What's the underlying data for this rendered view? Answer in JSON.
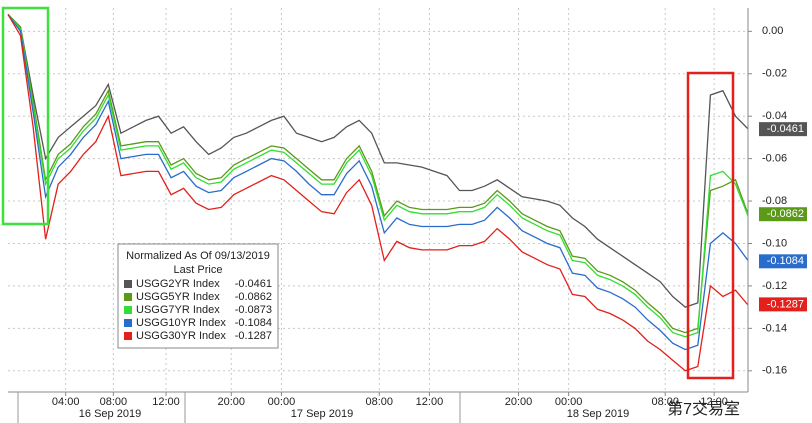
{
  "chart_data": {
    "type": "line",
    "legend_title": "Normalized As Of 09/13/2019",
    "legend_subtitle": "Last Price",
    "watermark": "第7交易室",
    "xlim": [
      0,
      59
    ],
    "xticks": [
      {
        "value": 4.6,
        "label": "04:00"
      },
      {
        "value": 8.4,
        "label": "08:00"
      },
      {
        "value": 12.6,
        "label": "12:00"
      },
      {
        "value": 17.8,
        "label": "20:00"
      },
      {
        "value": 21.8,
        "label": "00:00"
      },
      {
        "value": 29.6,
        "label": "08:00"
      },
      {
        "value": 33.6,
        "label": "12:00"
      },
      {
        "value": 40.7,
        "label": "20:00"
      },
      {
        "value": 44.7,
        "label": "00:00"
      },
      {
        "value": 52.4,
        "label": "08:00"
      },
      {
        "value": 56.3,
        "label": "12:00"
      }
    ],
    "days": [
      "16 Sep 2019",
      "17 Sep 2019",
      "18 Sep 2019"
    ],
    "ylim": [
      -0.17,
      0.011
    ],
    "yticks": [
      {
        "value": 0,
        "label": "0.00"
      },
      -0.02,
      -0.04,
      -0.06,
      -0.08,
      {
        "value": -0.1,
        "label": "-0.10"
      },
      -0.12,
      -0.14,
      -0.16
    ],
    "grid": true,
    "series": [
      {
        "name": "USGG2YR Index",
        "color": "#555555",
        "last": -0.0461,
        "axis_label": true,
        "values": [
          0.008,
          0.002,
          -0.03,
          -0.06,
          -0.05,
          -0.045,
          -0.04,
          -0.035,
          -0.025,
          -0.048,
          -0.045,
          -0.042,
          -0.04,
          -0.048,
          -0.045,
          -0.052,
          -0.058,
          -0.055,
          -0.05,
          -0.048,
          -0.045,
          -0.042,
          -0.04,
          -0.048,
          -0.05,
          -0.052,
          -0.05,
          -0.045,
          -0.042,
          -0.048,
          -0.062,
          -0.062,
          -0.063,
          -0.064,
          -0.066,
          -0.068,
          -0.075,
          -0.075,
          -0.073,
          -0.07,
          -0.074,
          -0.078,
          -0.079,
          -0.08,
          -0.082,
          -0.088,
          -0.092,
          -0.098,
          -0.102,
          -0.106,
          -0.11,
          -0.114,
          -0.118,
          -0.125,
          -0.13,
          -0.128,
          -0.03,
          -0.028,
          -0.04,
          -0.046
        ]
      },
      {
        "name": "USGG5YR Index",
        "color": "#5a9a18",
        "last": -0.0862,
        "axis_label": true,
        "values": [
          0.008,
          0.002,
          -0.033,
          -0.07,
          -0.058,
          -0.053,
          -0.045,
          -0.039,
          -0.028,
          -0.054,
          -0.053,
          -0.052,
          -0.052,
          -0.063,
          -0.06,
          -0.067,
          -0.07,
          -0.069,
          -0.063,
          -0.06,
          -0.057,
          -0.054,
          -0.055,
          -0.06,
          -0.065,
          -0.07,
          -0.07,
          -0.06,
          -0.054,
          -0.066,
          -0.087,
          -0.08,
          -0.083,
          -0.084,
          -0.084,
          -0.084,
          -0.083,
          -0.083,
          -0.081,
          -0.075,
          -0.08,
          -0.086,
          -0.089,
          -0.092,
          -0.094,
          -0.106,
          -0.107,
          -0.113,
          -0.115,
          -0.118,
          -0.122,
          -0.128,
          -0.133,
          -0.14,
          -0.142,
          -0.14,
          -0.075,
          -0.073,
          -0.07,
          -0.086
        ]
      },
      {
        "name": "USGG7YR Index",
        "color": "#33dd33",
        "last": -0.0873,
        "axis_label": false,
        "values": [
          0.008,
          0.001,
          -0.035,
          -0.072,
          -0.06,
          -0.055,
          -0.047,
          -0.041,
          -0.03,
          -0.056,
          -0.055,
          -0.054,
          -0.054,
          -0.065,
          -0.062,
          -0.069,
          -0.072,
          -0.071,
          -0.065,
          -0.062,
          -0.059,
          -0.056,
          -0.057,
          -0.062,
          -0.067,
          -0.072,
          -0.072,
          -0.062,
          -0.056,
          -0.068,
          -0.089,
          -0.082,
          -0.085,
          -0.086,
          -0.086,
          -0.086,
          -0.085,
          -0.085,
          -0.083,
          -0.077,
          -0.082,
          -0.088,
          -0.091,
          -0.094,
          -0.096,
          -0.108,
          -0.109,
          -0.115,
          -0.117,
          -0.12,
          -0.124,
          -0.13,
          -0.135,
          -0.142,
          -0.144,
          -0.142,
          -0.068,
          -0.066,
          -0.072,
          -0.087
        ]
      },
      {
        "name": "USGG10YR Index",
        "color": "#2a6ccc",
        "last": -0.1084,
        "axis_label": true,
        "values": [
          0.008,
          0.0,
          -0.038,
          -0.078,
          -0.064,
          -0.058,
          -0.05,
          -0.044,
          -0.033,
          -0.06,
          -0.059,
          -0.058,
          -0.058,
          -0.069,
          -0.066,
          -0.073,
          -0.076,
          -0.075,
          -0.069,
          -0.066,
          -0.063,
          -0.06,
          -0.061,
          -0.066,
          -0.072,
          -0.077,
          -0.077,
          -0.067,
          -0.061,
          -0.073,
          -0.095,
          -0.088,
          -0.091,
          -0.092,
          -0.092,
          -0.092,
          -0.091,
          -0.091,
          -0.089,
          -0.083,
          -0.088,
          -0.094,
          -0.097,
          -0.1,
          -0.102,
          -0.114,
          -0.115,
          -0.121,
          -0.123,
          -0.126,
          -0.13,
          -0.136,
          -0.141,
          -0.147,
          -0.15,
          -0.148,
          -0.1,
          -0.095,
          -0.1,
          -0.108
        ]
      },
      {
        "name": "USGG30YR Index",
        "color": "#e3201b",
        "last": -0.1287,
        "axis_label": true,
        "values": [
          0.008,
          -0.002,
          -0.045,
          -0.098,
          -0.072,
          -0.066,
          -0.058,
          -0.052,
          -0.04,
          -0.068,
          -0.067,
          -0.066,
          -0.066,
          -0.077,
          -0.074,
          -0.081,
          -0.084,
          -0.083,
          -0.077,
          -0.074,
          -0.071,
          -0.068,
          -0.07,
          -0.075,
          -0.08,
          -0.085,
          -0.086,
          -0.076,
          -0.07,
          -0.082,
          -0.108,
          -0.099,
          -0.102,
          -0.103,
          -0.103,
          -0.103,
          -0.101,
          -0.101,
          -0.099,
          -0.093,
          -0.098,
          -0.104,
          -0.107,
          -0.11,
          -0.112,
          -0.124,
          -0.125,
          -0.131,
          -0.133,
          -0.136,
          -0.14,
          -0.146,
          -0.15,
          -0.155,
          -0.16,
          -0.158,
          -0.12,
          -0.125,
          -0.122,
          -0.129
        ]
      }
    ]
  }
}
